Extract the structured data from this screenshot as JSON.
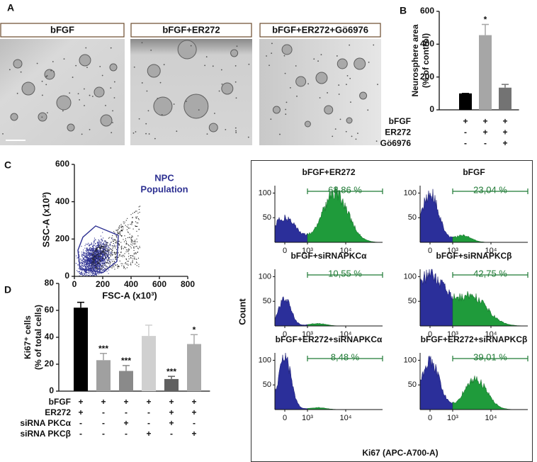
{
  "panel_labels": [
    "A",
    "B",
    "C",
    "D"
  ],
  "panel_a": {
    "images": [
      {
        "label": "bFGF"
      },
      {
        "label": "bFGF+ER272"
      },
      {
        "label": "bFGF+ER272+Gö6976"
      }
    ]
  },
  "chart_data": [
    {
      "type": "bar",
      "ylabel": [
        "Neurosphere area",
        "(% of control)"
      ],
      "values": [
        100,
        455,
        135
      ],
      "errors": [
        0,
        65,
        20
      ],
      "colors": [
        "#000000",
        "#a6a6a6",
        "#737373"
      ],
      "ylim": [
        0,
        600
      ],
      "yticks": [
        0,
        200,
        400,
        600
      ],
      "annotations": [
        {
          "bar": 1,
          "text": "*"
        }
      ],
      "conditions": [
        {
          "label": "bFGF",
          "marks": [
            "+",
            "+",
            "+"
          ]
        },
        {
          "label": "ER272",
          "marks": [
            "-",
            "+",
            "+"
          ]
        },
        {
          "label": "Gö6976",
          "marks": [
            "-",
            "-",
            "+"
          ]
        }
      ]
    },
    {
      "type": "bar",
      "ylabel": [
        "Ki67⁺ cells",
        "(% of total cells)"
      ],
      "values": [
        62,
        23,
        15,
        41,
        9,
        35
      ],
      "errors": [
        4,
        5,
        4,
        8,
        2,
        7
      ],
      "colors": [
        "#000000",
        "#a0a0a0",
        "#8a8a8a",
        "#d0d0d0",
        "#606060",
        "#aaaaaa"
      ],
      "ylim": [
        0,
        80
      ],
      "yticks": [
        0,
        20,
        40,
        60,
        80
      ],
      "annotations": [
        {
          "bar": 1,
          "text": "***"
        },
        {
          "bar": 2,
          "text": "***"
        },
        {
          "bar": 4,
          "text": "***"
        },
        {
          "bar": 5,
          "text": "*"
        }
      ],
      "conditions": [
        {
          "label": "bFGF",
          "marks": [
            "+",
            "+",
            "+",
            "+",
            "+",
            "+"
          ]
        },
        {
          "label": "ER272",
          "marks": [
            "+",
            "-",
            "-",
            "-",
            "+",
            "+"
          ]
        },
        {
          "label": "siRNA PKCα",
          "marks": [
            "-",
            "-",
            "+",
            "-",
            "+",
            "-"
          ]
        },
        {
          "label": "siRNA PKCβ",
          "marks": [
            "-",
            "-",
            "-",
            "+",
            "-",
            "+"
          ]
        }
      ]
    }
  ],
  "scatter": {
    "xlabel": "FSC-A (x10³)",
    "ylabel": "SSC-A (x10³)",
    "xlim": [
      0,
      800
    ],
    "ylim": [
      0,
      600
    ],
    "xticks": [
      0,
      200,
      400,
      600,
      800
    ],
    "yticks": [
      0,
      200,
      400,
      600
    ],
    "gate_label": [
      "NPC",
      "Population"
    ]
  },
  "histograms": {
    "ylabel": "Count",
    "xlabel": "Ki67 (APC-A700-A)",
    "ylim": [
      0,
      115
    ],
    "yticks": [
      50,
      100
    ],
    "xtick_labels": [
      "0",
      "10³",
      "10⁴"
    ],
    "panels": [
      {
        "title": "bFGF+ER272",
        "gate": "68,86 %"
      },
      {
        "title": "bFGF",
        "gate": "23,04 %"
      },
      {
        "title": "bFGF+siRNAPKCα",
        "gate": "10,55 %"
      },
      {
        "title": "bFGF+siRNAPKCβ",
        "gate": "42,75 %"
      },
      {
        "title": "bFGF+ER272+siRNAPKCα",
        "gate": "8,48 %"
      },
      {
        "title": "bFGF+ER272+siRNAPKCβ",
        "gate": "39,01 %"
      }
    ]
  }
}
